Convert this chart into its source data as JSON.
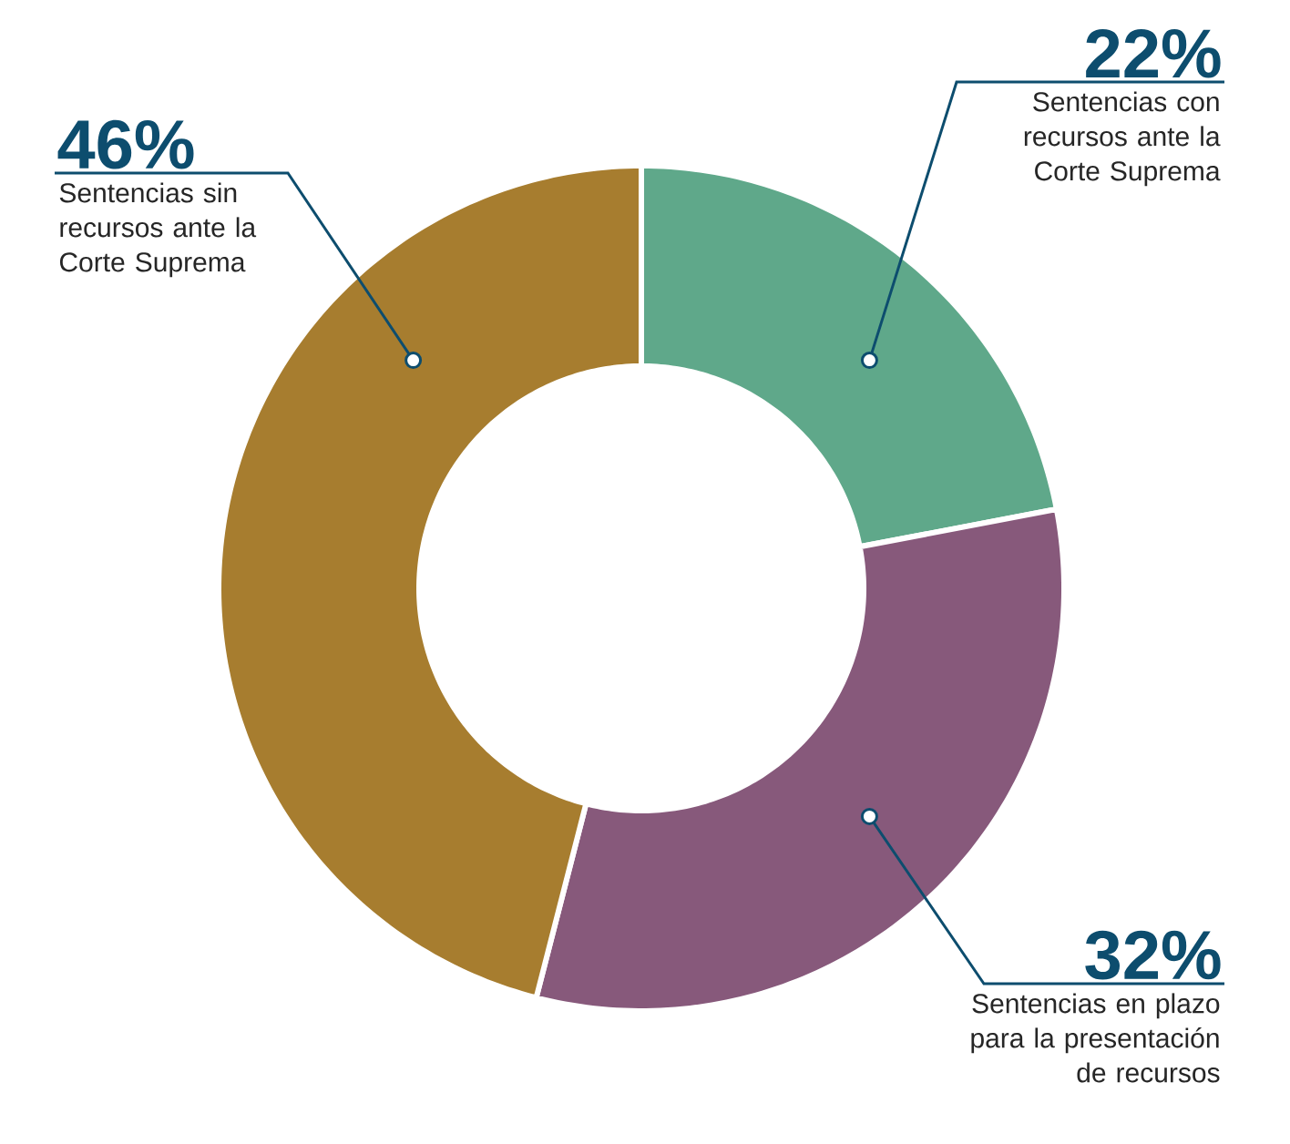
{
  "chart_data": {
    "type": "donut",
    "categories": [
      "Sentencias con recursos ante la Corte Suprema",
      "Sentencias en plazo para la presentación de recursos",
      "Sentencias sin recursos ante la Corte Suprema"
    ],
    "values": [
      22,
      32,
      46
    ],
    "value_labels": [
      "22%",
      "32%",
      "46%"
    ],
    "colors": [
      "#5fa88a",
      "#87597b",
      "#a77d2f"
    ]
  }
}
